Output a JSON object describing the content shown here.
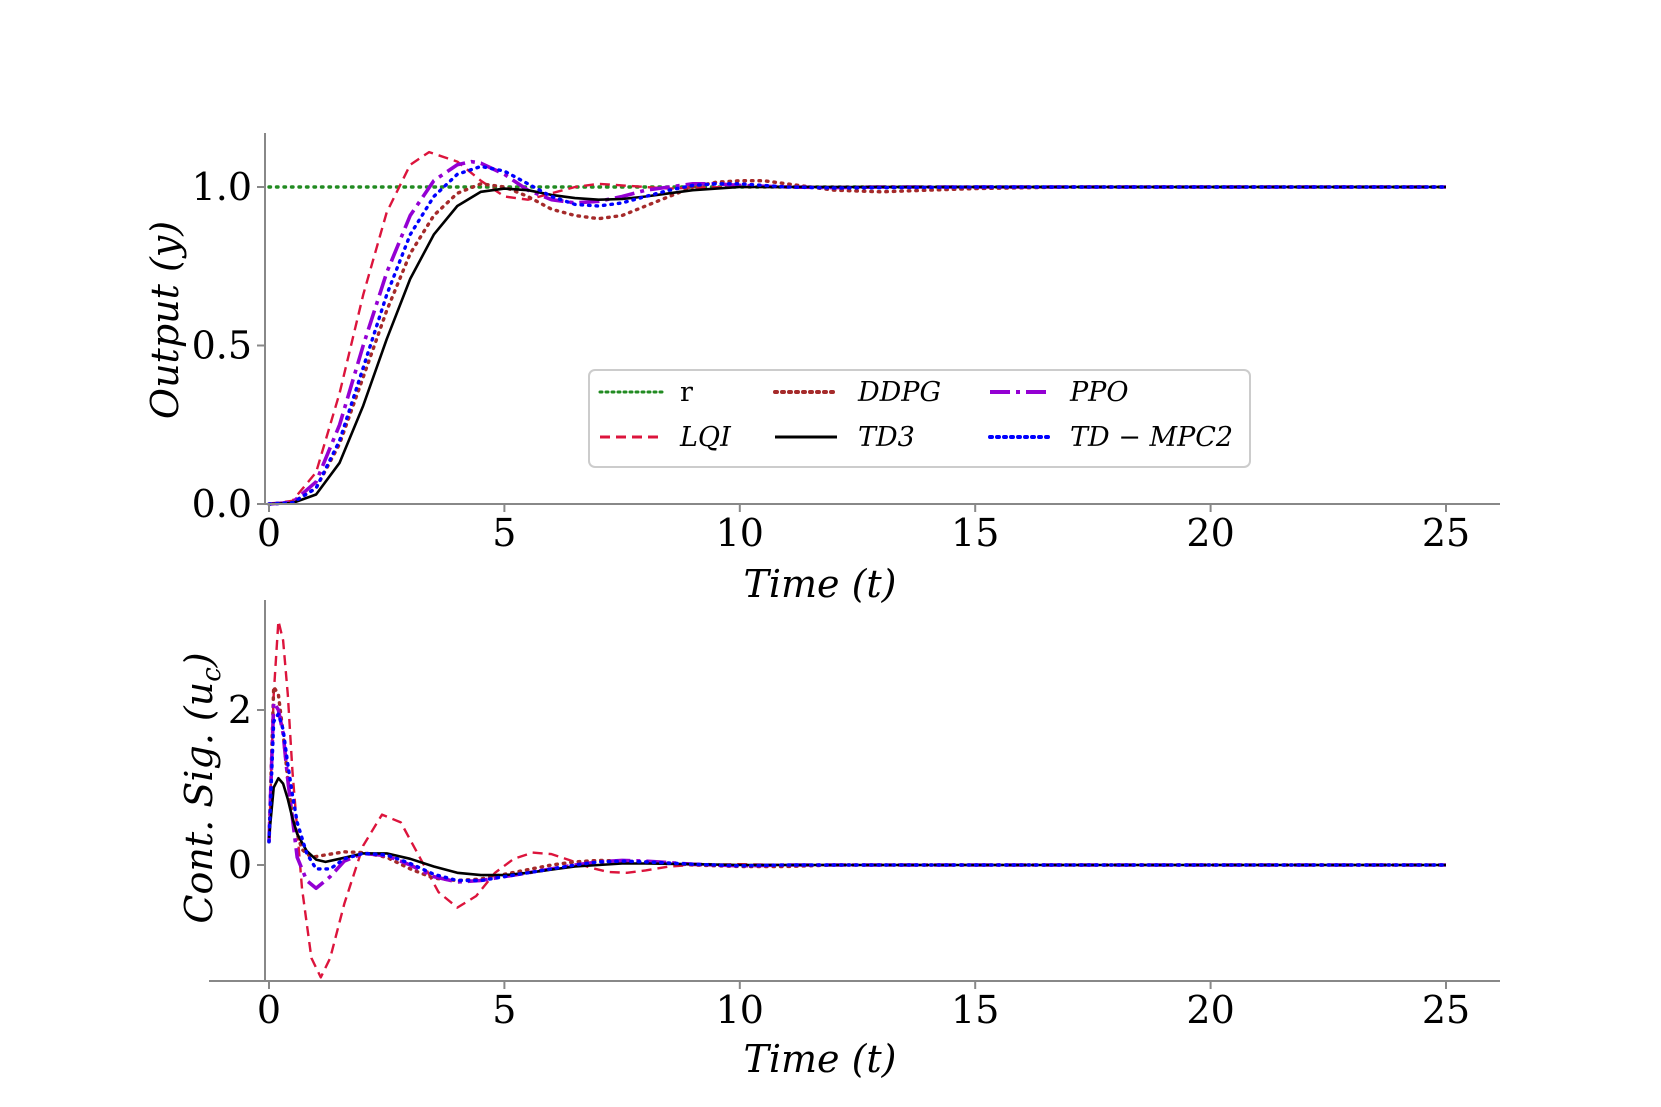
{
  "chart_data": [
    {
      "id": "top",
      "type": "line",
      "xlabel": "Time (t)",
      "ylabel": "Output (y)",
      "xlim": [
        -0.3,
        26.3
      ],
      "ylim": [
        0.0,
        1.17
      ],
      "xticks": [
        0,
        5,
        10,
        15,
        20,
        25
      ],
      "xtick_labels": [
        "0",
        "5",
        "10",
        "15",
        "20",
        "25"
      ],
      "yticks": [
        0.0,
        0.5,
        1.0
      ],
      "ytick_labels": [
        "0.0",
        "0.5",
        "1.0"
      ],
      "legend_position": "center",
      "legend": [
        {
          "key": "r",
          "label": "r"
        },
        {
          "key": "ddpg",
          "label": "DDPG"
        },
        {
          "key": "ppo",
          "label": "PPO"
        },
        {
          "key": "lqi",
          "label": "LQI"
        },
        {
          "key": "td3",
          "label": "TD3"
        },
        {
          "key": "tdmpc2",
          "label": "TD − MPC2"
        }
      ],
      "series": [
        {
          "key": "r",
          "name": "r",
          "color": "#228b22",
          "dash": "dotted",
          "x": [
            0,
            25
          ],
          "y": [
            1.0,
            1.0
          ]
        },
        {
          "key": "lqi",
          "name": "LQI",
          "color": "#dc143c",
          "dash": "dashed",
          "x": [
            0,
            0.5,
            1.0,
            1.5,
            2.0,
            2.5,
            3.0,
            3.4,
            4.0,
            4.5,
            5.0,
            5.5,
            6.0,
            6.5,
            7.0,
            7.5,
            8.0,
            8.5,
            9.0,
            10.0,
            11.0,
            12.0,
            13.0,
            15.0,
            20.0,
            25.0
          ],
          "y": [
            0.0,
            0.01,
            0.1,
            0.35,
            0.66,
            0.92,
            1.07,
            1.11,
            1.08,
            1.02,
            0.97,
            0.96,
            0.98,
            1.0,
            1.01,
            1.005,
            1.0,
            0.995,
            0.998,
            1.0,
            1.0,
            1.0,
            1.0,
            1.0,
            1.0,
            1.0
          ]
        },
        {
          "key": "ddpg",
          "name": "DDPG",
          "color": "#a52a2a",
          "dash": "dotted",
          "x": [
            0,
            0.5,
            1.0,
            1.5,
            2.0,
            2.5,
            3.0,
            3.5,
            4.0,
            4.5,
            5.0,
            5.5,
            6.0,
            6.5,
            7.0,
            7.5,
            8.0,
            8.5,
            9.0,
            9.5,
            10.0,
            10.5,
            11.0,
            11.5,
            12.0,
            13.0,
            14.0,
            15.0,
            17.0,
            20.0,
            25.0
          ],
          "y": [
            0.0,
            0.005,
            0.05,
            0.19,
            0.4,
            0.61,
            0.79,
            0.91,
            0.98,
            1.01,
            1.0,
            0.97,
            0.93,
            0.91,
            0.9,
            0.91,
            0.94,
            0.97,
            1.0,
            1.015,
            1.02,
            1.02,
            1.01,
            1.0,
            0.99,
            0.985,
            0.99,
            0.995,
            1.0,
            1.0,
            1.0
          ]
        },
        {
          "key": "ppo",
          "name": "PPO",
          "color": "#9400d3",
          "dash": "dashdot",
          "x": [
            0,
            0.5,
            1.0,
            1.5,
            2.0,
            2.5,
            3.0,
            3.5,
            4.0,
            4.3,
            4.5,
            5.0,
            5.5,
            6.0,
            6.5,
            7.0,
            7.5,
            8.0,
            8.5,
            9.0,
            9.5,
            10.0,
            11.0,
            12.0,
            13.0,
            15.0,
            20.0,
            25.0
          ],
          "y": [
            0.0,
            0.005,
            0.07,
            0.25,
            0.5,
            0.73,
            0.91,
            1.02,
            1.07,
            1.08,
            1.075,
            1.04,
            0.99,
            0.96,
            0.95,
            0.955,
            0.97,
            0.99,
            1.0,
            1.01,
            1.01,
            1.005,
            1.0,
            0.998,
            1.0,
            1.0,
            1.0,
            1.0
          ]
        },
        {
          "key": "td3",
          "name": "TD3",
          "color": "#000000",
          "dash": "solid",
          "x": [
            0,
            0.5,
            1.0,
            1.5,
            2.0,
            2.5,
            3.0,
            3.5,
            4.0,
            4.5,
            5.0,
            5.5,
            6.0,
            6.5,
            7.0,
            7.5,
            8.0,
            8.5,
            9.0,
            10.0,
            11.0,
            12.0,
            13.0,
            15.0,
            20.0,
            25.0
          ],
          "y": [
            0.0,
            0.003,
            0.03,
            0.13,
            0.31,
            0.52,
            0.71,
            0.85,
            0.94,
            0.985,
            0.995,
            0.99,
            0.975,
            0.965,
            0.96,
            0.962,
            0.97,
            0.98,
            0.99,
            1.0,
            1.0,
            1.0,
            1.0,
            1.0,
            1.0,
            1.0
          ]
        },
        {
          "key": "tdmpc2",
          "name": "TD − MPC2",
          "color": "#0000ff",
          "dash": "dotted",
          "x": [
            0,
            0.5,
            1.0,
            1.5,
            2.0,
            2.5,
            3.0,
            3.5,
            4.0,
            4.5,
            5.0,
            5.5,
            6.0,
            6.5,
            7.0,
            7.5,
            8.0,
            8.5,
            9.0,
            9.5,
            10.0,
            11.0,
            12.0,
            15.0,
            20.0,
            25.0
          ],
          "y": [
            0.0,
            0.004,
            0.05,
            0.2,
            0.43,
            0.66,
            0.85,
            0.97,
            1.04,
            1.065,
            1.05,
            1.01,
            0.97,
            0.945,
            0.94,
            0.95,
            0.97,
            0.99,
            1.005,
            1.01,
            1.01,
            1.0,
            0.997,
            1.0,
            1.0,
            1.0
          ]
        }
      ]
    },
    {
      "id": "bottom",
      "type": "line",
      "xlabel": "Time (t)",
      "ylabel": "Cont. Sig. (u_c)",
      "ylabel_main": "Cont. Sig. (u",
      "ylabel_sub": "c",
      "ylabel_close": ")",
      "xlim": [
        -1.25,
        26.3
      ],
      "ylim": [
        -1.52,
        3.4
      ],
      "xticks": [
        0,
        5,
        10,
        15,
        20,
        25
      ],
      "xtick_labels": [
        "0",
        "5",
        "10",
        "15",
        "20",
        "25"
      ],
      "yticks": [
        0,
        2
      ],
      "ytick_labels": [
        "0",
        "2"
      ],
      "series": [
        {
          "key": "lqi",
          "name": "LQI",
          "color": "#dc143c",
          "dash": "dashed",
          "x": [
            0,
            0.1,
            0.2,
            0.3,
            0.4,
            0.5,
            0.7,
            0.9,
            1.1,
            1.3,
            1.6,
            2.0,
            2.4,
            2.8,
            3.2,
            3.6,
            4.0,
            4.4,
            4.8,
            5.2,
            5.6,
            6.0,
            6.4,
            6.8,
            7.2,
            7.6,
            8.0,
            8.5,
            9.0,
            10.0,
            11.0,
            12.0,
            15.0,
            20.0,
            25.0
          ],
          "y": [
            0.3,
            2.2,
            3.15,
            2.9,
            2.2,
            1.2,
            -0.3,
            -1.2,
            -1.45,
            -1.2,
            -0.5,
            0.25,
            0.65,
            0.55,
            0.1,
            -0.35,
            -0.55,
            -0.4,
            -0.1,
            0.08,
            0.16,
            0.14,
            0.06,
            -0.03,
            -0.09,
            -0.1,
            -0.07,
            -0.02,
            0.0,
            0.01,
            0.0,
            0.0,
            0.0,
            0.0,
            0.0
          ]
        },
        {
          "key": "ddpg",
          "name": "DDPG",
          "color": "#a52a2a",
          "dash": "dotted",
          "x": [
            0,
            0.1,
            0.2,
            0.3,
            0.4,
            0.5,
            0.7,
            0.9,
            1.2,
            1.6,
            2.0,
            2.5,
            3.0,
            3.5,
            4.0,
            4.5,
            5.0,
            5.5,
            6.0,
            6.5,
            7.0,
            7.5,
            8.0,
            9.0,
            10.0,
            11.0,
            12.0,
            15.0,
            20.0,
            25.0
          ],
          "y": [
            0.3,
            2.3,
            2.2,
            1.7,
            1.1,
            0.6,
            0.2,
            0.1,
            0.13,
            0.17,
            0.16,
            0.1,
            -0.05,
            -0.17,
            -0.2,
            -0.18,
            -0.12,
            -0.06,
            0.0,
            0.04,
            0.06,
            0.05,
            0.04,
            0.0,
            -0.02,
            -0.02,
            0.0,
            0.0,
            0.0,
            0.0
          ]
        },
        {
          "key": "ppo",
          "name": "PPO",
          "color": "#9400d3",
          "dash": "dashdot",
          "x": [
            0,
            0.1,
            0.2,
            0.3,
            0.4,
            0.5,
            0.6,
            0.8,
            1.0,
            1.3,
            1.6,
            2.0,
            2.5,
            3.0,
            3.5,
            4.0,
            4.5,
            5.0,
            5.5,
            6.0,
            6.5,
            7.0,
            7.5,
            8.0,
            9.0,
            10.0,
            11.0,
            12.0,
            15.0,
            20.0,
            25.0
          ],
          "y": [
            0.3,
            2.1,
            2.0,
            1.7,
            1.1,
            0.6,
            0.1,
            -0.2,
            -0.3,
            -0.15,
            0.05,
            0.15,
            0.12,
            0.0,
            -0.15,
            -0.22,
            -0.2,
            -0.15,
            -0.1,
            -0.05,
            0.0,
            0.04,
            0.06,
            0.05,
            0.01,
            -0.01,
            0.0,
            0.0,
            0.0,
            0.0,
            0.0
          ]
        },
        {
          "key": "td3",
          "name": "TD3",
          "color": "#000000",
          "dash": "solid",
          "x": [
            0,
            0.1,
            0.2,
            0.3,
            0.4,
            0.5,
            0.6,
            0.8,
            1.0,
            1.2,
            1.5,
            2.0,
            2.5,
            3.0,
            3.5,
            4.0,
            4.5,
            5.0,
            5.5,
            6.0,
            6.5,
            7.0,
            7.5,
            8.0,
            9.0,
            10.0,
            12.0,
            15.0,
            20.0,
            25.0
          ],
          "y": [
            0.35,
            1.0,
            1.12,
            1.05,
            0.85,
            0.6,
            0.4,
            0.18,
            0.07,
            0.04,
            0.08,
            0.15,
            0.15,
            0.08,
            -0.02,
            -0.1,
            -0.13,
            -0.13,
            -0.1,
            -0.06,
            -0.02,
            0.0,
            0.02,
            0.02,
            0.01,
            0.0,
            0.0,
            0.0,
            0.0,
            0.0
          ]
        },
        {
          "key": "tdmpc2",
          "name": "TD − MPC2",
          "color": "#0000ff",
          "dash": "dotted",
          "x": [
            0,
            0.1,
            0.2,
            0.3,
            0.4,
            0.5,
            0.6,
            0.8,
            1.0,
            1.3,
            1.6,
            2.0,
            2.5,
            3.0,
            3.5,
            4.0,
            4.5,
            5.0,
            5.5,
            6.0,
            6.5,
            7.0,
            7.5,
            8.0,
            9.0,
            10.0,
            11.0,
            12.0,
            15.0,
            20.0,
            25.0
          ],
          "y": [
            0.3,
            1.85,
            1.95,
            1.75,
            1.3,
            0.9,
            0.55,
            0.15,
            -0.05,
            -0.05,
            0.08,
            0.15,
            0.13,
            0.02,
            -0.12,
            -0.2,
            -0.2,
            -0.15,
            -0.1,
            -0.05,
            0.0,
            0.04,
            0.05,
            0.04,
            0.01,
            -0.01,
            0.0,
            0.0,
            0.0,
            0.0,
            0.0
          ]
        }
      ]
    }
  ]
}
